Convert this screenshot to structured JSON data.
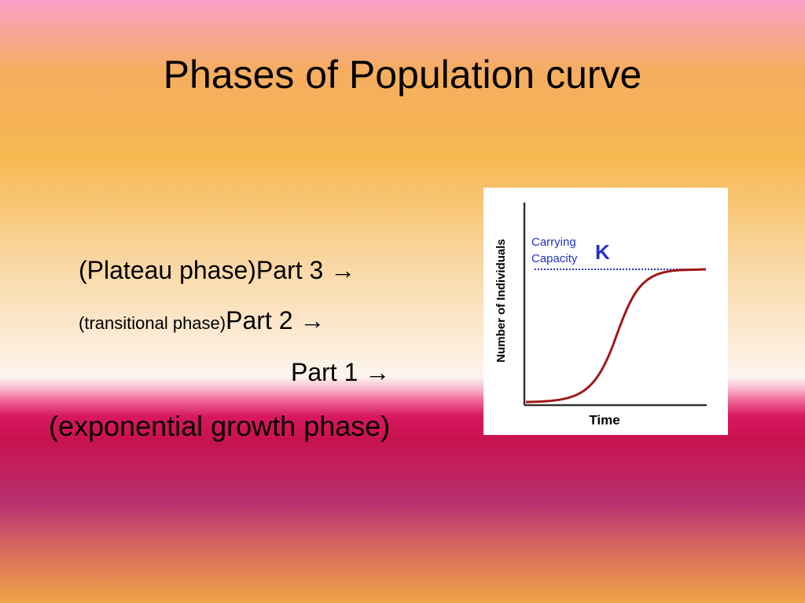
{
  "slide_title": "Phases of Population curve",
  "phases": [
    {
      "text": "(Plateau phase)Part 3 →"
    },
    {
      "prefix": "(transitional phase)",
      "text": "Part 2 →"
    },
    {
      "text": "Part 1 →"
    },
    {
      "text": "(exponential growth phase)"
    }
  ],
  "figure": {
    "y_label": "Number of Individuals",
    "x_label": "Time",
    "carrying": "Carrying",
    "capacity": "Capacity",
    "k": "K"
  }
}
